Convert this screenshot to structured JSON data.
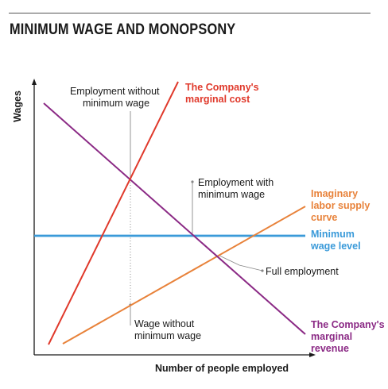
{
  "title": "MINIMUM WAGE AND MONOPSONY",
  "axes": {
    "y_label": "Wages",
    "x_label": "Number of people employed"
  },
  "labels": {
    "mc": [
      "The Company's",
      "marginal cost"
    ],
    "supply": [
      "Imaginary",
      "labor supply",
      "curve"
    ],
    "min_wage": [
      "Minimum",
      "wage level"
    ],
    "mr": [
      "The Company's",
      "marginal",
      "revenue"
    ],
    "emp_without": [
      "Employment without",
      "minimum wage"
    ],
    "emp_with": [
      "Employment with",
      "minimum wage"
    ],
    "full_emp": "Full employment",
    "wage_without": [
      "Wage without",
      "minimum wage"
    ]
  },
  "colors": {
    "marginal_cost": "#e0392b",
    "labor_supply": "#e8823a",
    "minimum_wage": "#3a9ad9",
    "marginal_revenue": "#8b2a85",
    "axis": "#1a1a1a",
    "annotation": "#888888"
  }
}
